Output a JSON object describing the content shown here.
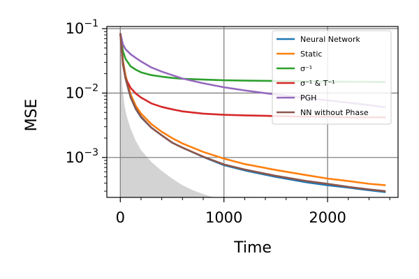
{
  "chart_data": {
    "type": "line",
    "title": "",
    "xlabel": "Time",
    "ylabel": "MSE",
    "xlim": [
      -130,
      2680
    ],
    "ylim": [
      0.00024,
      0.108
    ],
    "yscale": "log",
    "grid": true,
    "legend_position": "top-right",
    "x_ticks": [
      {
        "value": 0,
        "label": "0"
      },
      {
        "value": 1000,
        "label": "1000"
      },
      {
        "value": 2000,
        "label": "2000"
      }
    ],
    "y_ticks": [
      {
        "value": 0.001,
        "base": "10",
        "exp": "−3"
      },
      {
        "value": 0.01,
        "base": "10",
        "exp": "−2"
      },
      {
        "value": 0.1,
        "base": "10",
        "exp": "−1"
      }
    ],
    "x": [
      0,
      25,
      50,
      100,
      150,
      200,
      300,
      400,
      500,
      600,
      800,
      1000,
      1200,
      1500,
      1800,
      2000,
      2200,
      2400,
      2560
    ],
    "series": [
      {
        "name": "Neural Network",
        "color": "#1f77b4",
        "values": [
          0.085,
          0.03,
          0.017,
          0.0085,
          0.0056,
          0.0042,
          0.0029,
          0.0022,
          0.0017,
          0.00142,
          0.00102,
          0.00076,
          0.00063,
          0.0005,
          0.00041,
          0.00037,
          0.00034,
          0.00031,
          0.00029
        ]
      },
      {
        "name": "Static",
        "color": "#ff7f0e",
        "values": [
          0.085,
          0.032,
          0.019,
          0.0095,
          0.0063,
          0.0048,
          0.0033,
          0.0025,
          0.002,
          0.00165,
          0.00122,
          0.00096,
          0.00079,
          0.00064,
          0.00053,
          0.00047,
          0.00043,
          0.00039,
          0.00037
        ]
      },
      {
        "name": "σ⁻¹",
        "color": "#2ca02c",
        "values": [
          0.085,
          0.045,
          0.034,
          0.026,
          0.023,
          0.021,
          0.019,
          0.018,
          0.0172,
          0.0167,
          0.0162,
          0.0158,
          0.0156,
          0.0154,
          0.0152,
          0.0151,
          0.015,
          0.0149,
          0.0148
        ]
      },
      {
        "name": "σ⁻¹ & T⁻¹",
        "color": "#d62728",
        "values": [
          0.085,
          0.028,
          0.017,
          0.012,
          0.0098,
          0.0085,
          0.0069,
          0.0061,
          0.0056,
          0.0052,
          0.0048,
          0.0046,
          0.0045,
          0.0044,
          0.0043,
          0.0043,
          0.0042,
          0.0042,
          0.0042
        ]
      },
      {
        "name": "PGH",
        "color": "#9467bd",
        "values": [
          0.085,
          0.057,
          0.048,
          0.04,
          0.035,
          0.031,
          0.025,
          0.0215,
          0.019,
          0.0168,
          0.0142,
          0.0123,
          0.011,
          0.0095,
          0.0084,
          0.0077,
          0.0071,
          0.0065,
          0.006
        ]
      },
      {
        "name": "NN without Phase",
        "color": "#8c564b",
        "values": [
          0.085,
          0.03,
          0.017,
          0.0086,
          0.0057,
          0.0043,
          0.0029,
          0.0022,
          0.0017,
          0.00142,
          0.00103,
          0.00078,
          0.00065,
          0.00052,
          0.00043,
          0.00039,
          0.00035,
          0.00032,
          0.0003
        ]
      }
    ],
    "shaded_region": {
      "color": "#d3d3d3",
      "x": [
        0,
        20,
        40,
        60,
        80,
        100,
        150,
        200,
        300,
        400,
        500,
        600,
        700,
        800,
        900
      ],
      "values": [
        0.085,
        0.012,
        0.0065,
        0.0045,
        0.0035,
        0.0028,
        0.0018,
        0.0013,
        0.00085,
        0.00062,
        0.00047,
        0.00037,
        0.00031,
        0.00027,
        0.00024
      ]
    }
  }
}
